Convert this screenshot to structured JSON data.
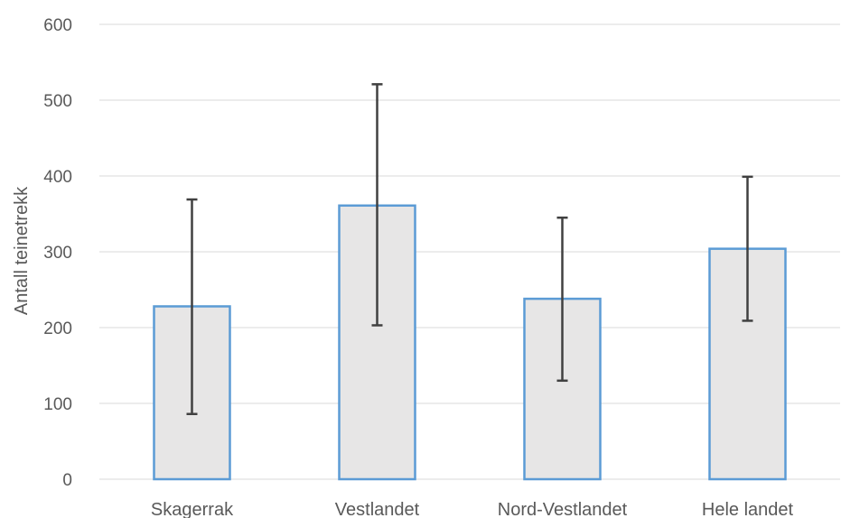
{
  "chart_data": {
    "type": "bar",
    "categories": [
      "Skagerrak",
      "Vestlandet",
      "Nord-Vestlandet",
      "Hele landet"
    ],
    "values": [
      228,
      361,
      238,
      304
    ],
    "error_low": [
      86,
      203,
      130,
      209
    ],
    "error_high": [
      369,
      521,
      345,
      399
    ],
    "title": "",
    "xlabel": "",
    "ylabel": "Antall teinetrekk",
    "ylim": [
      0,
      600
    ],
    "yticks": [
      0,
      100,
      200,
      300,
      400,
      500,
      600
    ],
    "grid": true,
    "legend": "none",
    "colors": {
      "bar_fill": "#e7e6e6",
      "bar_stroke": "#5b9bd5",
      "error_bar": "#404040",
      "grid": "#d9d9d9",
      "text": "#595959"
    }
  }
}
